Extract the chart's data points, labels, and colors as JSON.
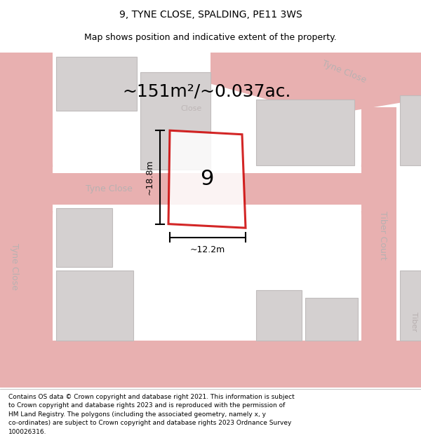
{
  "title": "9, TYNE CLOSE, SPALDING, PE11 3WS",
  "subtitle": "Map shows position and indicative extent of the property.",
  "footer_lines": [
    "Contains OS data © Crown copyright and database right 2021. This information is subject",
    "to Crown copyright and database rights 2023 and is reproduced with the permission of",
    "HM Land Registry. The polygons (including the associated geometry, namely x, y",
    "co-ordinates) are subject to Crown copyright and database rights 2023 Ordnance Survey",
    "100026316."
  ],
  "area_label": "~151m²/~0.037ac.",
  "number_label": "9",
  "width_label": "~12.2m",
  "height_label": "~18.8m",
  "map_bg": "#eeecec",
  "road_color": "#e8b0b0",
  "building_color": "#d4d0d0",
  "building_outline": "#c0bcbc",
  "plot_outline": "#cc0000",
  "plot_fill": "#ffffff",
  "plot_alpha": 0.85,
  "dim_line_color": "#000000",
  "street_text_color": "#b8b0b0",
  "title_color": "#000000",
  "footer_color": "#000000",
  "title_fontsize": 10,
  "subtitle_fontsize": 9,
  "area_fontsize": 18,
  "number_fontsize": 22,
  "street_fontsize": 9,
  "footer_fontsize": 6.5
}
